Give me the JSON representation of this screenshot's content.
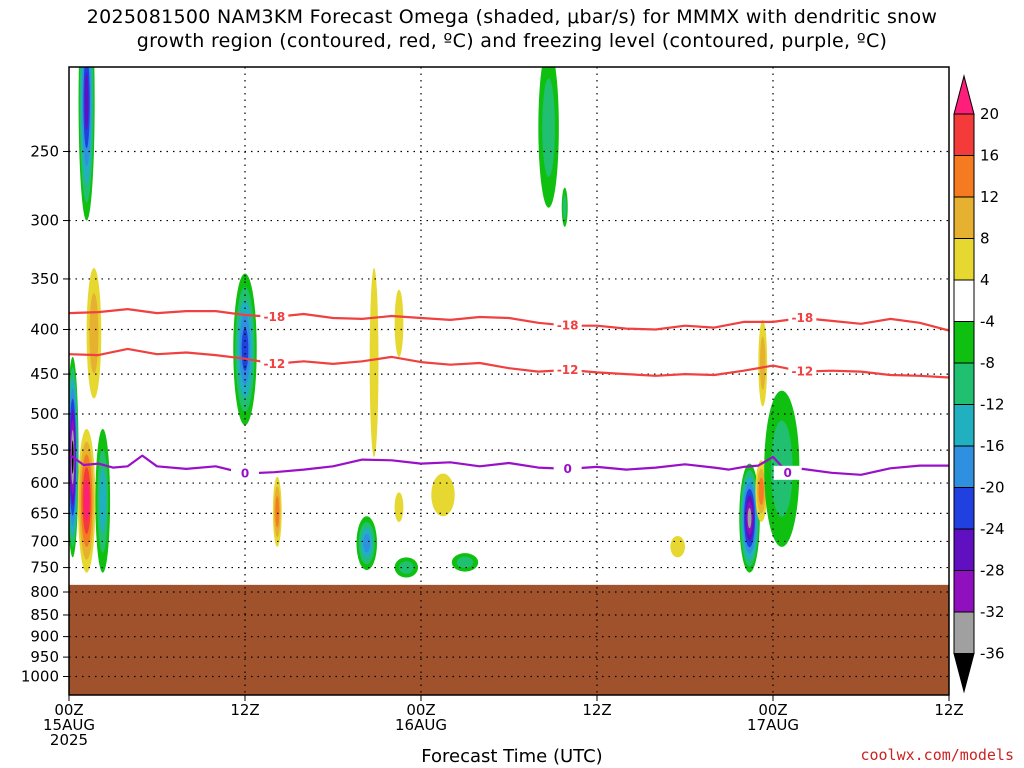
{
  "chart_data": {
    "type": "heatmap",
    "title_line1": "2025081500 NAM3KM Forecast Omega (shaded, μbar/s) for MMMX with dendritic snow",
    "title_line2": "growth region (contoured, red, ºC) and freezing level (contoured, purple, ºC)",
    "xlabel": "Forecast Time (UTC)",
    "ylabel": "",
    "x_range_hours": [
      0,
      60
    ],
    "y_range_hPa": [
      200,
      1050
    ],
    "y_scale": "log",
    "x_ticks": [
      {
        "hour": 0,
        "lines": [
          "00Z",
          "15AUG",
          "2025"
        ]
      },
      {
        "hour": 12,
        "lines": [
          "12Z"
        ]
      },
      {
        "hour": 24,
        "lines": [
          "00Z",
          "16AUG"
        ]
      },
      {
        "hour": 36,
        "lines": [
          "12Z"
        ]
      },
      {
        "hour": 48,
        "lines": [
          "00Z",
          "17AUG"
        ]
      },
      {
        "hour": 60,
        "lines": [
          "12Z"
        ]
      }
    ],
    "y_ticks": [
      "250",
      "300",
      "350",
      "400",
      "450",
      "500",
      "550",
      "600",
      "650",
      "700",
      "750",
      "800",
      "850",
      "900",
      "950",
      "1000"
    ],
    "y_tick_values": [
      250,
      300,
      350,
      400,
      450,
      500,
      550,
      600,
      650,
      700,
      750,
      800,
      850,
      900,
      950,
      1000
    ],
    "grid": true,
    "below_ground_hPa": 785,
    "below_ground_color": "#a0522d",
    "colorbar": {
      "labels": [
        "20",
        "16",
        "12",
        "8",
        "4",
        "-4",
        "-8",
        "-12",
        "-16",
        "-20",
        "-24",
        "-28",
        "-32",
        "-36"
      ],
      "colors": [
        "#ff1f7a",
        "#f53a3a",
        "#f57a20",
        "#e6b030",
        "#e6d830",
        "#ffffff",
        "#10c010",
        "#20c070",
        "#20b0c0",
        "#3090e0",
        "#2040e0",
        "#6010c0",
        "#9010c0",
        "#a0a0a0",
        "#000000"
      ]
    },
    "contours": [
      {
        "name": "-18",
        "color": "#f04040",
        "x": [
          0,
          2,
          4,
          6,
          8,
          10,
          12,
          14,
          16,
          18,
          20,
          22,
          24,
          26,
          28,
          30,
          32,
          34,
          36,
          38,
          40,
          42,
          44,
          46,
          48,
          50,
          52,
          54,
          56,
          58,
          60
        ],
        "y": [
          383,
          382,
          379,
          383,
          381,
          381,
          385,
          387,
          384,
          388,
          389,
          386,
          388,
          390,
          387,
          388,
          393,
          396,
          396,
          399,
          400,
          396,
          398,
          392,
          392,
          388,
          391,
          394,
          389,
          393,
          401
        ]
      },
      {
        "name": "-12",
        "color": "#f04040",
        "x": [
          0,
          2,
          4,
          6,
          8,
          10,
          12,
          14,
          16,
          18,
          20,
          22,
          24,
          26,
          28,
          30,
          32,
          34,
          36,
          38,
          40,
          42,
          44,
          46,
          48,
          50,
          52,
          54,
          56,
          58,
          60
        ],
        "y": [
          427,
          428,
          421,
          427,
          425,
          428,
          432,
          438,
          435,
          438,
          435,
          430,
          436,
          439,
          437,
          443,
          447,
          445,
          448,
          450,
          452,
          450,
          451,
          446,
          440,
          447,
          446,
          447,
          451,
          452,
          454
        ]
      },
      {
        "name": "0",
        "color": "#9a10c8",
        "x": [
          0,
          1,
          2,
          3,
          4,
          5,
          6,
          8,
          10,
          12,
          14,
          16,
          18,
          20,
          22,
          24,
          26,
          28,
          30,
          32,
          34,
          36,
          38,
          40,
          42,
          44,
          45,
          46,
          47,
          48,
          49,
          50,
          52,
          54,
          56,
          58,
          60
        ],
        "y": [
          556,
          572,
          570,
          576,
          574,
          558,
          574,
          578,
          574,
          585,
          583,
          579,
          574,
          564,
          565,
          570,
          568,
          574,
          569,
          576,
          578,
          575,
          579,
          576,
          571,
          576,
          579,
          575,
          573,
          560,
          584,
          578,
          584,
          587,
          577,
          573,
          573
        ]
      }
    ],
    "omega_cells": [
      {
        "x": 1.2,
        "p": 230,
        "dx": 0.55,
        "dp": 70,
        "value": -22
      },
      {
        "x": 1.7,
        "p": 410,
        "dx": 0.5,
        "dp": 70,
        "value": 6
      },
      {
        "x": 0.25,
        "p": 580,
        "dx": 0.4,
        "dp": 150,
        "value": -36
      },
      {
        "x": 1.2,
        "p": 640,
        "dx": 0.6,
        "dp": 120,
        "value": 18
      },
      {
        "x": 2.3,
        "p": 640,
        "dx": 0.5,
        "dp": 120,
        "value": -12
      },
      {
        "x": 12.0,
        "p": 430,
        "dx": 0.8,
        "dp": 85,
        "value": -18
      },
      {
        "x": 14.2,
        "p": 650,
        "dx": 0.3,
        "dp": 60,
        "value": 10
      },
      {
        "x": 20.3,
        "p": 705,
        "dx": 0.7,
        "dp": 50,
        "value": -14
      },
      {
        "x": 20.8,
        "p": 450,
        "dx": 0.3,
        "dp": 110,
        "value": 5
      },
      {
        "x": 22.5,
        "p": 395,
        "dx": 0.3,
        "dp": 35,
        "value": 5
      },
      {
        "x": 22.5,
        "p": 640,
        "dx": 0.3,
        "dp": 25,
        "value": 5
      },
      {
        "x": 23.0,
        "p": 750,
        "dx": 0.8,
        "dp": 20,
        "value": -6
      },
      {
        "x": 25.5,
        "p": 620,
        "dx": 0.8,
        "dp": 35,
        "value": 5
      },
      {
        "x": 27.0,
        "p": 740,
        "dx": 0.9,
        "dp": 18,
        "value": -6
      },
      {
        "x": 32.7,
        "p": 240,
        "dx": 0.7,
        "dp": 50,
        "value": -6
      },
      {
        "x": 33.8,
        "p": 290,
        "dx": 0.15,
        "dp": 15,
        "value": -6
      },
      {
        "x": 41.5,
        "p": 710,
        "dx": 0.5,
        "dp": 20,
        "value": 5
      },
      {
        "x": 46.4,
        "p": 665,
        "dx": 0.7,
        "dp": 95,
        "value": -32
      },
      {
        "x": 47.2,
        "p": 615,
        "dx": 0.4,
        "dp": 50,
        "value": 12
      },
      {
        "x": 47.3,
        "p": 440,
        "dx": 0.3,
        "dp": 50,
        "value": 8
      },
      {
        "x": 48.6,
        "p": 590,
        "dx": 1.2,
        "dp": 120,
        "value": -7
      }
    ]
  },
  "credit": "coolwx.com/models"
}
